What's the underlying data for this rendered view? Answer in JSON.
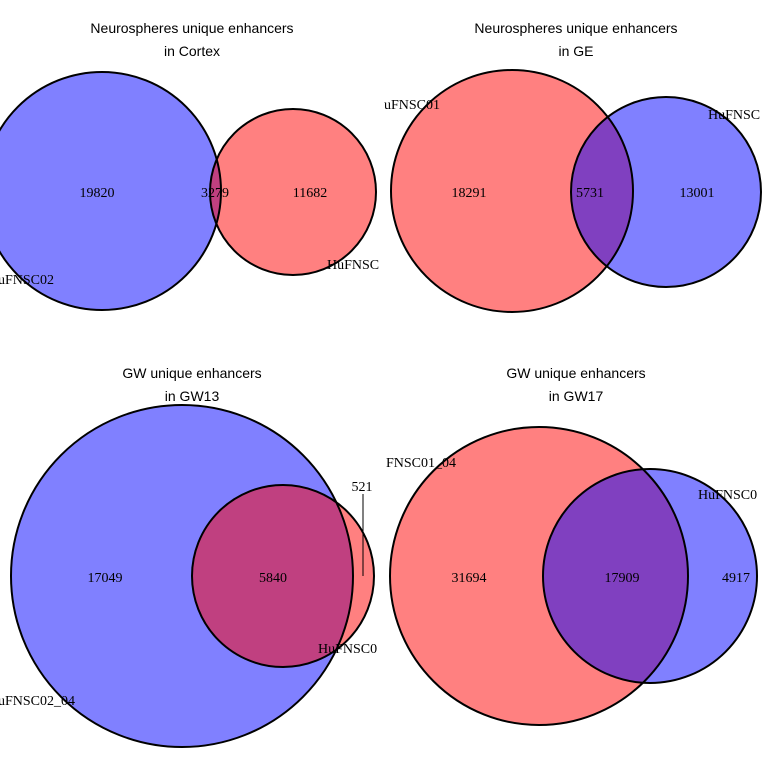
{
  "colors": {
    "blue": "#8080ff",
    "red": "#ff8080",
    "purple_overlap": "#8040c0",
    "maroon_overlap": "#c04080",
    "outline": "#000000"
  },
  "panels": [
    {
      "title_line1": "Neurospheres unique enhancers",
      "title_line2": "in Cortex",
      "set_a": {
        "label": "uFNSC02",
        "count": "19820",
        "color": "blue"
      },
      "set_b": {
        "label": "HuFNSC",
        "count": "11682",
        "color": "red"
      },
      "overlap": {
        "count": "3279"
      }
    },
    {
      "title_line1": "Neurospheres unique enhancers",
      "title_line2": "in GE",
      "set_a": {
        "label": "uFNSC01",
        "count": "18291",
        "color": "red"
      },
      "set_b": {
        "label": "HuFNSC",
        "count": "13001",
        "color": "blue"
      },
      "overlap": {
        "count": "5731"
      }
    },
    {
      "title_line1": "GW unique enhancers",
      "title_line2": "in GW13",
      "set_a": {
        "label": "uFNSC02_04",
        "count": "17049",
        "color": "blue"
      },
      "set_b": {
        "label": "HuFNSC0",
        "count": "521",
        "color": "red"
      },
      "overlap": {
        "count": "5840"
      }
    },
    {
      "title_line1": "GW unique enhancers",
      "title_line2": "in GW17",
      "set_a": {
        "label": "FNSC01_04",
        "count": "31694",
        "color": "red"
      },
      "set_b": {
        "label": "HuFNSC0",
        "count": "4917",
        "color": "blue"
      },
      "overlap": {
        "count": "17909"
      }
    }
  ]
}
